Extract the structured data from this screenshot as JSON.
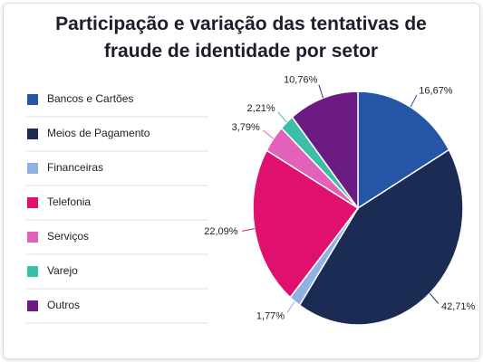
{
  "chart_data": {
    "type": "pie",
    "title": "Participação e variação das tentativas de fraude de identidade por setor",
    "categories": [
      "Bancos e Cartões",
      "Meios de Pagamento",
      "Financeiras",
      "Telefonia",
      "Serviços",
      "Varejo",
      "Outros"
    ],
    "values": [
      16.67,
      42.71,
      1.77,
      22.09,
      3.79,
      2.21,
      10.76
    ],
    "value_labels": [
      "16,67%",
      "42,71%",
      "1,77%",
      "22,09%",
      "3,79%",
      "2,21%",
      "10,76%"
    ],
    "colors": [
      "#2456a5",
      "#1c2b53",
      "#8fb1e3",
      "#e0106f",
      "#e262b9",
      "#3cbfa8",
      "#6b1b81"
    ],
    "legend": "left"
  }
}
